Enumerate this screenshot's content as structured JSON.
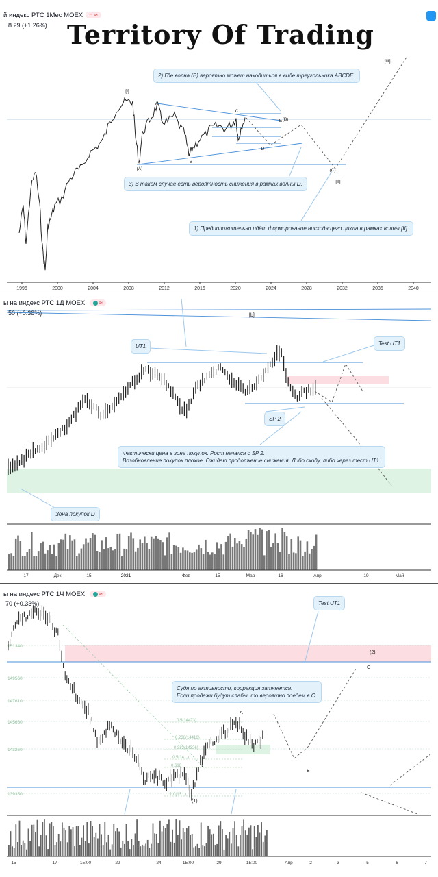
{
  "watermark": "Territory Of Trading",
  "colors": {
    "line": "#4a90d9",
    "price": "#222222",
    "pinkZone": "#fbdde2",
    "greenZone": "#dff3e4",
    "note": "#e3f1fb"
  },
  "panel1": {
    "title": "й индекс РТС  1Мес  MOEX",
    "change": "8.29 (+1.26%)",
    "badge": "= ≈",
    "years": [
      "1996",
      "2000",
      "2004",
      "2008",
      "2012",
      "2016",
      "2020",
      "2024",
      "2028",
      "2032",
      "2036",
      "2040"
    ],
    "wave_labels": [
      "[I]",
      "A",
      "C",
      "(B)",
      "E",
      "D",
      "(A)",
      "B",
      "(C)",
      "[II]",
      "[III]"
    ],
    "notes": [
      "2) Где волна (B) вероятно может находиться в виде треугольника ABCDE.",
      "3) В таком случае есть вероятность снижения в рамках волны D.",
      "1) Предположительно идёт формирование нисходящего цикла в рамках волны [II]."
    ]
  },
  "panel2": {
    "title": "ы на индекс РТС  1Д  MOEX",
    "change": "50 (+0.38%)",
    "badge": "≈",
    "wave_label": "[b]",
    "months": [
      "17",
      "Дек",
      "15",
      "2021",
      "Фев",
      "15",
      "Мар",
      "16",
      "Апр",
      "19",
      "Май"
    ],
    "labels": [
      "UT1",
      "Test UT1",
      "SP 2",
      "Зона покупок D"
    ],
    "note_main": "Фактически цена в зоне покупок. Рост начался с SP 2.\nВозобновление покупок плохое. Ожидаю продолжение снижения. Либо сходу, либо через тест UT1."
  },
  "panel3": {
    "title": "ы на индекс РТС  1Ч  MOEX",
    "change": "70 (+0.33%)",
    "badge": "≈",
    "prices": [
      "151340",
      "149560",
      "147610",
      "145660",
      "143260",
      "139350"
    ],
    "fib": [
      "0.5(14473)",
      "0.236(14416)",
      "0.382(14326)",
      "0.5(14...)",
      "0.618",
      "1.0(13...)"
    ],
    "labels": [
      "Test UT1",
      "(2)",
      "C",
      "A",
      "B",
      "(1)"
    ],
    "note": "Судя по активности, коррекция затянется.\nЕсли продажи будут слабы, то вероятно поедем в С.",
    "days": [
      "15",
      "17",
      "15:00",
      "22",
      "24",
      "15:00",
      "29",
      "15:00",
      "Апр",
      "2",
      "3",
      "5",
      "6",
      "7"
    ]
  }
}
